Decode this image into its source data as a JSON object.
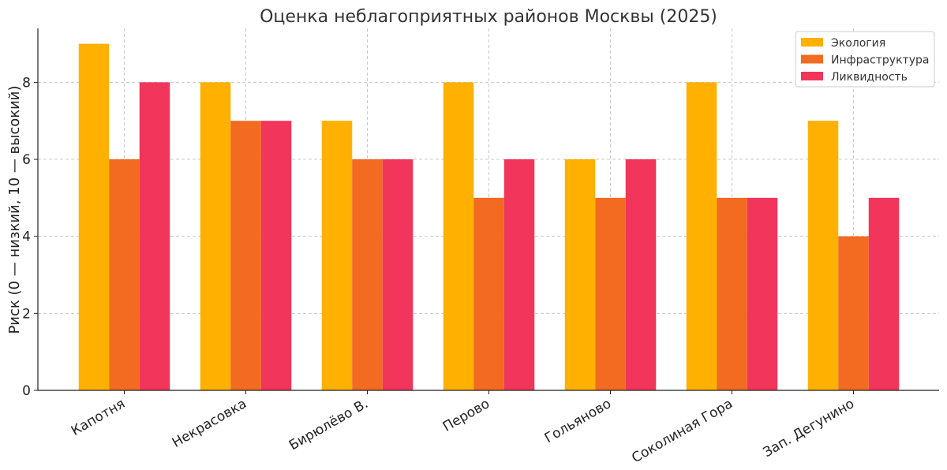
{
  "chart_data": {
    "type": "bar",
    "title": "Оценка неблагоприятных районов Москвы (2025)",
    "xlabel": "",
    "ylabel": "Риск (0 — низкий, 10 — высокий)",
    "categories": [
      "Капотня",
      "Некрасовка",
      "Бирюлёво В.",
      "Перово",
      "Гольяново",
      "Соколиная Гора",
      "Зап. Дегунино"
    ],
    "series": [
      {
        "name": "Экология",
        "color": "#FFB000",
        "values": [
          9,
          8,
          7,
          8,
          6,
          8,
          7
        ]
      },
      {
        "name": "Инфраструктура",
        "color": "#F26B21",
        "values": [
          6,
          7,
          6,
          5,
          5,
          5,
          4
        ]
      },
      {
        "name": "Ликвидность",
        "color": "#F2355B",
        "values": [
          8,
          7,
          6,
          6,
          6,
          5,
          5
        ]
      }
    ],
    "ylim": [
      0,
      9.4
    ],
    "yticks": [
      0,
      2,
      4,
      6,
      8
    ],
    "grid": true,
    "legend_position": "top-right"
  }
}
